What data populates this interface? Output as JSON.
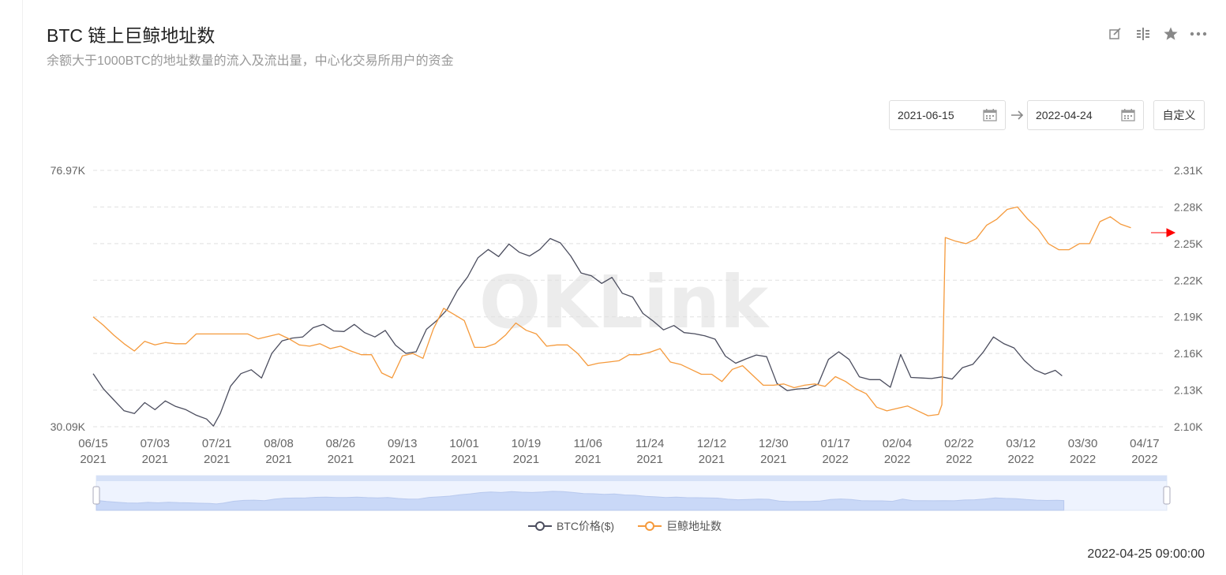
{
  "header": {
    "title": "BTC 链上巨鲸地址数",
    "subtitle": "余额大于1000BTC的地址数量的流入及流出量，中心化交易所用户的资金"
  },
  "toolbar": {
    "icons": [
      "edit-icon",
      "split-icon",
      "star-icon",
      "more-icon"
    ]
  },
  "date_range": {
    "start": "2021-06-15",
    "end": "2022-04-24",
    "custom_label": "自定义"
  },
  "watermark": "OKLink",
  "footer": {
    "timestamp": "2022-04-25 09:00:00"
  },
  "colors": {
    "price": "#4b4d5e",
    "whales": "#f59a3c",
    "grid": "#e0e0e0",
    "navigator": "#dde7fb",
    "arrow": "#ff0000"
  },
  "chart_data": {
    "type": "line",
    "x_ticks": [
      [
        "06/15",
        "2021"
      ],
      [
        "07/03",
        "2021"
      ],
      [
        "07/21",
        "2021"
      ],
      [
        "08/08",
        "2021"
      ],
      [
        "08/26",
        "2021"
      ],
      [
        "09/13",
        "2021"
      ],
      [
        "10/01",
        "2021"
      ],
      [
        "10/19",
        "2021"
      ],
      [
        "11/06",
        "2021"
      ],
      [
        "11/24",
        "2021"
      ],
      [
        "12/12",
        "2021"
      ],
      [
        "12/30",
        "2021"
      ],
      [
        "01/17",
        "2022"
      ],
      [
        "02/04",
        "2022"
      ],
      [
        "02/22",
        "2022"
      ],
      [
        "03/12",
        "2022"
      ],
      [
        "03/30",
        "2022"
      ],
      [
        "04/17",
        "2022"
      ]
    ],
    "y_left_labels": [
      "76.97K",
      "30.09K"
    ],
    "y_right_labels": [
      "2.31K",
      "2.28K",
      "2.25K",
      "2.22K",
      "2.19K",
      "2.16K",
      "2.13K",
      "2.10K"
    ],
    "ylim_left": [
      30090,
      76970
    ],
    "ylim_right": [
      2100,
      2310
    ],
    "series": [
      {
        "name": "BTC价格($)",
        "axis": "left",
        "values": [
          [
            0,
            39800
          ],
          [
            3,
            37000
          ],
          [
            6,
            35000
          ],
          [
            9,
            33000
          ],
          [
            12,
            32500
          ],
          [
            15,
            34500
          ],
          [
            18,
            33200
          ],
          [
            21,
            34800
          ],
          [
            24,
            33800
          ],
          [
            27,
            33200
          ],
          [
            30,
            32200
          ],
          [
            33,
            31500
          ],
          [
            35,
            30200
          ],
          [
            37,
            32500
          ],
          [
            40,
            37500
          ],
          [
            43,
            39800
          ],
          [
            46,
            40500
          ],
          [
            49,
            39000
          ],
          [
            52,
            43500
          ],
          [
            55,
            45800
          ],
          [
            58,
            46300
          ],
          [
            61,
            46500
          ],
          [
            64,
            48200
          ],
          [
            67,
            48800
          ],
          [
            70,
            47600
          ],
          [
            73,
            47500
          ],
          [
            76,
            48800
          ],
          [
            79,
            47300
          ],
          [
            82,
            46500
          ],
          [
            85,
            47700
          ],
          [
            88,
            45000
          ],
          [
            91,
            43500
          ],
          [
            94,
            43800
          ],
          [
            97,
            47900
          ],
          [
            100,
            49500
          ],
          [
            103,
            51500
          ],
          [
            106,
            55000
          ],
          [
            109,
            57500
          ],
          [
            112,
            61000
          ],
          [
            115,
            62500
          ],
          [
            118,
            61200
          ],
          [
            121,
            63500
          ],
          [
            124,
            62000
          ],
          [
            127,
            61300
          ],
          [
            130,
            62500
          ],
          [
            133,
            64500
          ],
          [
            136,
            63700
          ],
          [
            139,
            61300
          ],
          [
            142,
            58200
          ],
          [
            145,
            57700
          ],
          [
            148,
            56300
          ],
          [
            151,
            57400
          ],
          [
            154,
            54500
          ],
          [
            157,
            53800
          ],
          [
            160,
            50800
          ],
          [
            163,
            49400
          ],
          [
            166,
            47800
          ],
          [
            169,
            48600
          ],
          [
            172,
            47300
          ],
          [
            175,
            47100
          ],
          [
            178,
            46700
          ],
          [
            181,
            46100
          ],
          [
            184,
            43000
          ],
          [
            187,
            41700
          ],
          [
            190,
            42500
          ],
          [
            193,
            43200
          ],
          [
            196,
            42900
          ],
          [
            199,
            38000
          ],
          [
            202,
            36700
          ],
          [
            205,
            37000
          ],
          [
            208,
            37100
          ],
          [
            211,
            37900
          ],
          [
            214,
            42400
          ],
          [
            217,
            43800
          ],
          [
            220,
            42400
          ],
          [
            223,
            39200
          ],
          [
            226,
            38700
          ],
          [
            229,
            38700
          ],
          [
            232,
            37300
          ],
          [
            235,
            43300
          ],
          [
            238,
            39100
          ],
          [
            241,
            39000
          ],
          [
            244,
            38900
          ],
          [
            247,
            39200
          ],
          [
            250,
            38800
          ],
          [
            253,
            40900
          ],
          [
            256,
            41500
          ],
          [
            259,
            43700
          ],
          [
            262,
            46500
          ],
          [
            265,
            45300
          ],
          [
            268,
            44500
          ],
          [
            271,
            42200
          ],
          [
            274,
            40500
          ],
          [
            277,
            39700
          ],
          [
            280,
            40400
          ],
          [
            282,
            39400
          ]
        ]
      },
      {
        "name": "巨鲸地址数",
        "axis": "right",
        "values": [
          [
            0,
            2190
          ],
          [
            3,
            2183
          ],
          [
            6,
            2175
          ],
          [
            9,
            2168
          ],
          [
            12,
            2162
          ],
          [
            15,
            2170
          ],
          [
            18,
            2167
          ],
          [
            21,
            2169
          ],
          [
            24,
            2168
          ],
          [
            27,
            2168
          ],
          [
            30,
            2176
          ],
          [
            33,
            2176
          ],
          [
            36,
            2176
          ],
          [
            39,
            2176
          ],
          [
            42,
            2176
          ],
          [
            45,
            2176
          ],
          [
            48,
            2172
          ],
          [
            51,
            2174
          ],
          [
            54,
            2176
          ],
          [
            57,
            2172
          ],
          [
            60,
            2167
          ],
          [
            63,
            2166
          ],
          [
            66,
            2168
          ],
          [
            69,
            2164
          ],
          [
            72,
            2166
          ],
          [
            75,
            2162
          ],
          [
            78,
            2159
          ],
          [
            81,
            2159
          ],
          [
            84,
            2144
          ],
          [
            87,
            2140
          ],
          [
            90,
            2158
          ],
          [
            93,
            2160
          ],
          [
            96,
            2156
          ],
          [
            99,
            2180
          ],
          [
            102,
            2197
          ],
          [
            105,
            2192
          ],
          [
            108,
            2187
          ],
          [
            111,
            2165
          ],
          [
            114,
            2165
          ],
          [
            117,
            2168
          ],
          [
            120,
            2175
          ],
          [
            123,
            2185
          ],
          [
            126,
            2179
          ],
          [
            129,
            2176
          ],
          [
            132,
            2166
          ],
          [
            135,
            2167
          ],
          [
            138,
            2167
          ],
          [
            141,
            2160
          ],
          [
            144,
            2150
          ],
          [
            147,
            2152
          ],
          [
            150,
            2153
          ],
          [
            153,
            2154
          ],
          [
            156,
            2159
          ],
          [
            159,
            2159
          ],
          [
            162,
            2161
          ],
          [
            165,
            2164
          ],
          [
            168,
            2153
          ],
          [
            171,
            2151
          ],
          [
            174,
            2147
          ],
          [
            177,
            2143
          ],
          [
            180,
            2143
          ],
          [
            183,
            2137
          ],
          [
            186,
            2147
          ],
          [
            189,
            2150
          ],
          [
            192,
            2142
          ],
          [
            195,
            2134
          ],
          [
            198,
            2134
          ],
          [
            201,
            2135
          ],
          [
            204,
            2132
          ],
          [
            207,
            2134
          ],
          [
            210,
            2135
          ],
          [
            213,
            2133
          ],
          [
            216,
            2141
          ],
          [
            219,
            2137
          ],
          [
            222,
            2131
          ],
          [
            225,
            2127
          ],
          [
            228,
            2116
          ],
          [
            231,
            2113
          ],
          [
            234,
            2115
          ],
          [
            237,
            2117
          ],
          [
            240,
            2113
          ],
          [
            243,
            2109
          ],
          [
            246,
            2110
          ],
          [
            247,
            2118
          ],
          [
            248,
            2255
          ],
          [
            251,
            2252
          ],
          [
            254,
            2250
          ],
          [
            257,
            2254
          ],
          [
            260,
            2265
          ],
          [
            263,
            2270
          ],
          [
            266,
            2278
          ],
          [
            269,
            2280
          ],
          [
            272,
            2270
          ],
          [
            275,
            2262
          ],
          [
            278,
            2250
          ],
          [
            281,
            2245
          ],
          [
            284,
            2245
          ],
          [
            287,
            2250
          ],
          [
            290,
            2250
          ],
          [
            293,
            2268
          ],
          [
            296,
            2272
          ],
          [
            299,
            2266
          ],
          [
            302,
            2263
          ]
        ]
      }
    ],
    "x_domain": [
      0,
      312
    ],
    "grid": true,
    "legend_position": "bottom"
  }
}
